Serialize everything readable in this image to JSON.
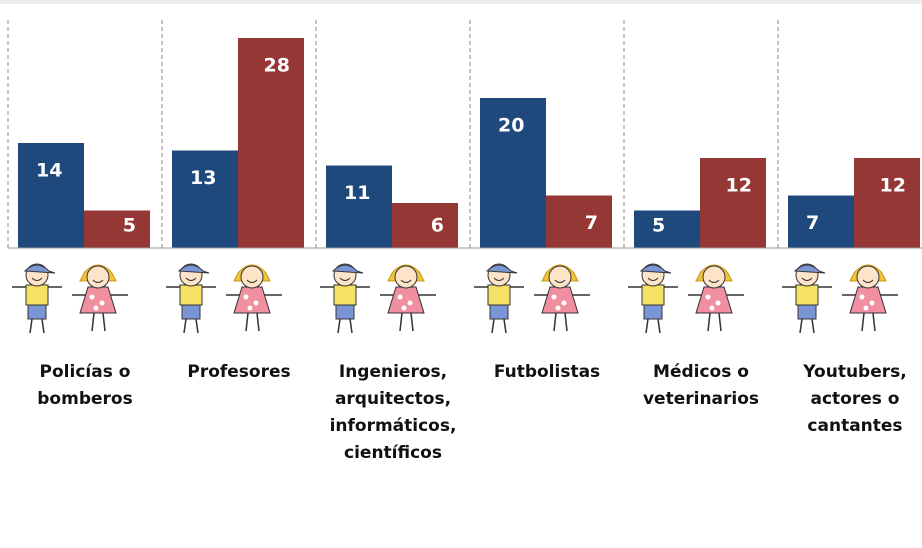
{
  "chart_data": {
    "type": "bar",
    "categories": [
      [
        "Policías o",
        "bomberos"
      ],
      [
        "Profesores"
      ],
      [
        "Ingenieros,",
        "arquitectos,",
        "informáticos,",
        "científicos"
      ],
      [
        "Futbolistas"
      ],
      [
        "Médicos o",
        "veterinarios"
      ],
      [
        "Youtubers,",
        "actores o",
        "cantantes"
      ]
    ],
    "series": [
      {
        "color": "#1f497d",
        "values": [
          14,
          13,
          11,
          20,
          5,
          7
        ]
      },
      {
        "color": "#953735",
        "values": [
          5,
          28,
          6,
          7,
          12,
          12
        ]
      }
    ]
  }
}
